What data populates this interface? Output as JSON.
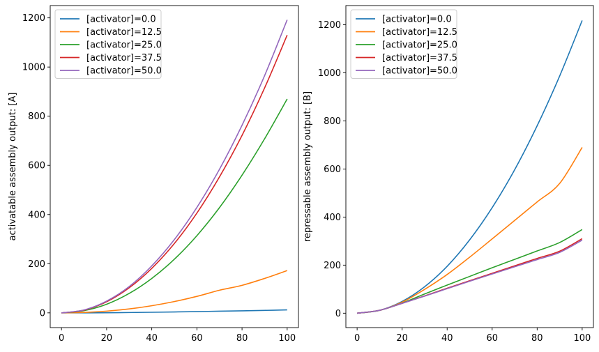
{
  "chart_data": [
    {
      "type": "line",
      "title": "",
      "xlabel": "",
      "ylabel": "activatable assembly output: [A]",
      "xlim": [
        -5,
        105
      ],
      "ylim": [
        -60,
        1250
      ],
      "xticks": [
        0,
        20,
        40,
        60,
        80,
        100
      ],
      "yticks": [
        0,
        200,
        400,
        600,
        800,
        1000,
        1200
      ],
      "grid": false,
      "legend_position": "top-left",
      "x": [
        0,
        10,
        20,
        30,
        40,
        50,
        60,
        70,
        80,
        90,
        100
      ],
      "series": [
        {
          "name": "[activator]=0.0",
          "color": "#1f77b4",
          "values": [
            0,
            0.1,
            0.5,
            1.3,
            2.4,
            3.7,
            5.1,
            6.7,
            8.3,
            10.1,
            12
          ]
        },
        {
          "name": "[activator]=12.5",
          "color": "#ff7f0e",
          "values": [
            0,
            1.7,
            7,
            16,
            29,
            46,
            67,
            92,
            112,
            140,
            172
          ]
        },
        {
          "name": "[activator]=25.0",
          "color": "#2ca02c",
          "values": [
            0,
            9,
            35,
            79,
            140,
            218,
            314,
            428,
            560,
            708,
            870
          ]
        },
        {
          "name": "[activator]=37.5",
          "color": "#d62728",
          "values": [
            0,
            11,
            45,
            102,
            181,
            282,
            406,
            553,
            722,
            915,
            1130
          ]
        },
        {
          "name": "[activator]=50.0",
          "color": "#9467bd",
          "values": [
            0,
            12,
            48,
            107,
            191,
            298,
            429,
            584,
            763,
            965,
            1192
          ]
        }
      ]
    },
    {
      "type": "line",
      "title": "",
      "xlabel": "",
      "ylabel": "repressable assembly output: [B]",
      "xlim": [
        -5,
        105
      ],
      "ylim": [
        -60,
        1280
      ],
      "xticks": [
        0,
        20,
        40,
        60,
        80,
        100
      ],
      "yticks": [
        0,
        200,
        400,
        600,
        800,
        1000,
        1200
      ],
      "grid": false,
      "legend_position": "top-left",
      "x": [
        0,
        10,
        20,
        30,
        40,
        50,
        60,
        70,
        80,
        90,
        100
      ],
      "series": [
        {
          "name": "[activator]=0.0",
          "color": "#1f77b4",
          "values": [
            0,
            12,
            49,
            110,
            195,
            305,
            439,
            597,
            780,
            987,
            1218
          ]
        },
        {
          "name": "[activator]=12.5",
          "color": "#ff7f0e",
          "values": [
            0,
            12,
            46,
            99,
            161,
            233,
            309,
            386,
            463,
            540,
            690
          ]
        },
        {
          "name": "[activator]=25.0",
          "color": "#2ca02c",
          "values": [
            0,
            12,
            42,
            80,
            117,
            153,
            189,
            224,
            259,
            294,
            348
          ]
        },
        {
          "name": "[activator]=37.5",
          "color": "#d62728",
          "values": [
            0,
            12,
            41,
            72,
            104,
            135,
            166,
            197,
            228,
            258,
            310
          ]
        },
        {
          "name": "[activator]=50.0",
          "color": "#9467bd",
          "values": [
            0,
            12,
            41,
            71,
            102,
            133,
            163,
            193,
            223,
            253,
            304
          ]
        }
      ]
    }
  ]
}
